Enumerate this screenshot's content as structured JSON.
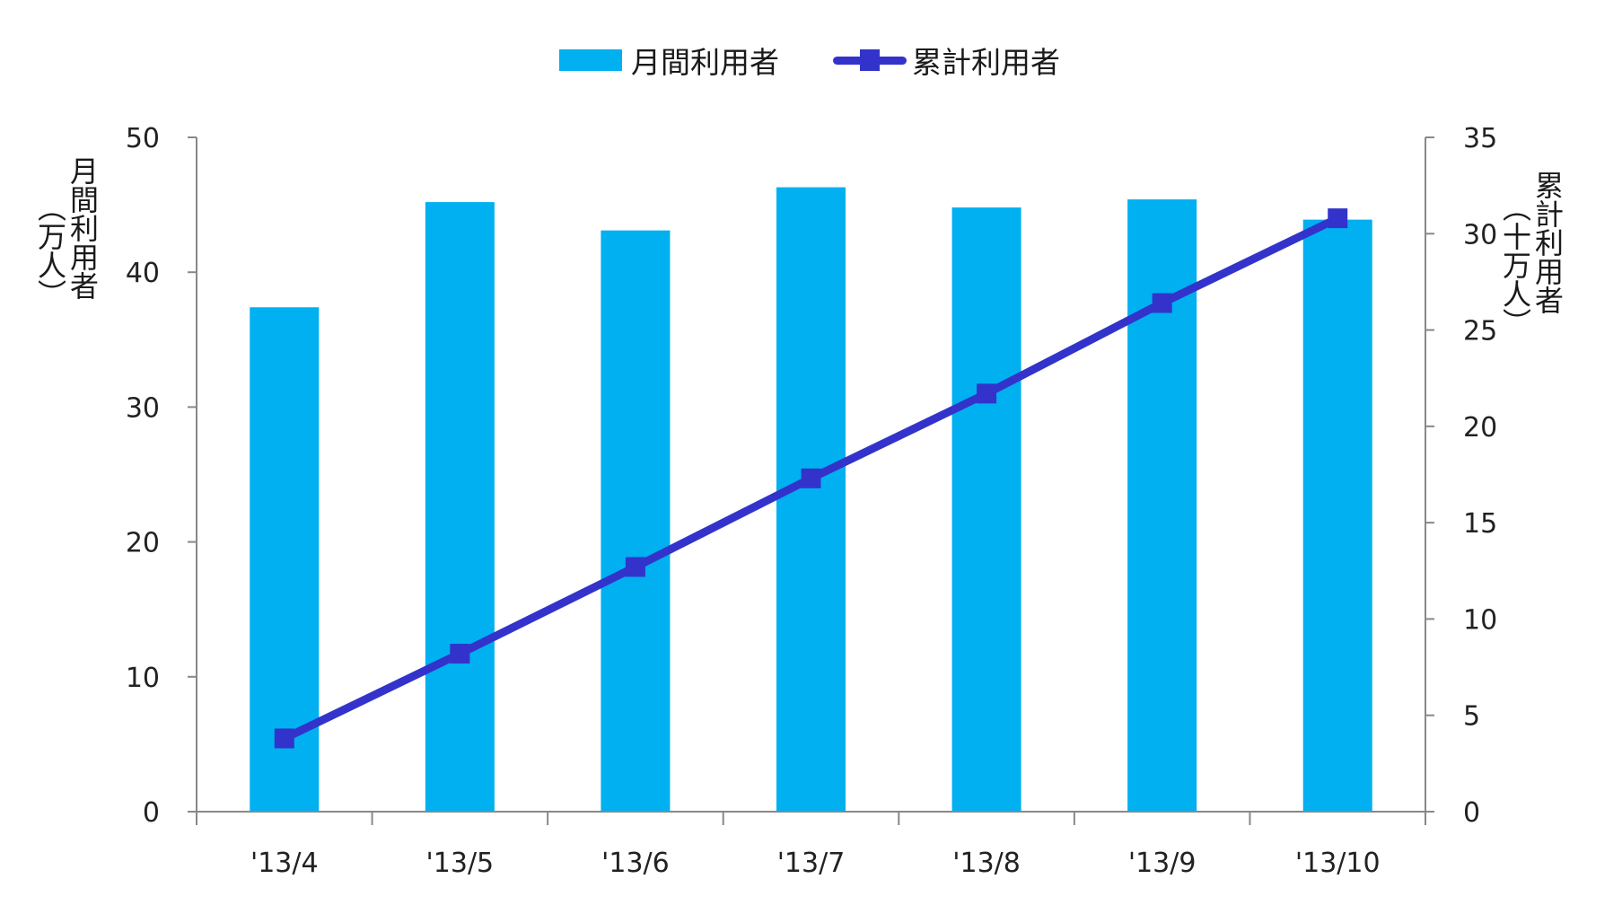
{
  "legend": {
    "bar_label": "月間利用者",
    "line_label": "累計利用者"
  },
  "axes": {
    "left_title": "月間利用者",
    "left_unit": "（万人）",
    "right_title": "累計利用者",
    "right_unit": "（十万人）",
    "left_ticks": [
      "0",
      "10",
      "20",
      "30",
      "40",
      "50"
    ],
    "right_ticks": [
      "0",
      "5",
      "10",
      "15",
      "20",
      "25",
      "30",
      "35"
    ]
  },
  "colors": {
    "bar": "#00b0f0",
    "line": "#3333cc",
    "axis": "#888888"
  },
  "chart_data": {
    "type": "bar+line",
    "title": "",
    "categories": [
      "'13/4",
      "'13/5",
      "'13/6",
      "'13/7",
      "'13/8",
      "'13/9",
      "'13/10"
    ],
    "series": [
      {
        "name": "月間利用者",
        "type": "bar",
        "axis": "left",
        "unit": "万人",
        "values": [
          37.4,
          45.2,
          43.1,
          46.3,
          44.8,
          45.4,
          43.9
        ]
      },
      {
        "name": "累計利用者",
        "type": "line",
        "axis": "right",
        "unit": "十万人",
        "marker": "square",
        "values": [
          3.8,
          8.2,
          12.7,
          17.3,
          21.7,
          26.4,
          30.8
        ]
      }
    ],
    "xlabel": "",
    "ylabel_left": "月間利用者（万人）",
    "ylabel_right": "累計利用者（十万人）",
    "ylim_left": [
      0,
      50
    ],
    "ylim_right": [
      0,
      35
    ],
    "yticks_left": [
      0,
      10,
      20,
      30,
      40,
      50
    ],
    "yticks_right": [
      0,
      5,
      10,
      15,
      20,
      25,
      30,
      35
    ],
    "grid": false,
    "legend_position": "top"
  }
}
